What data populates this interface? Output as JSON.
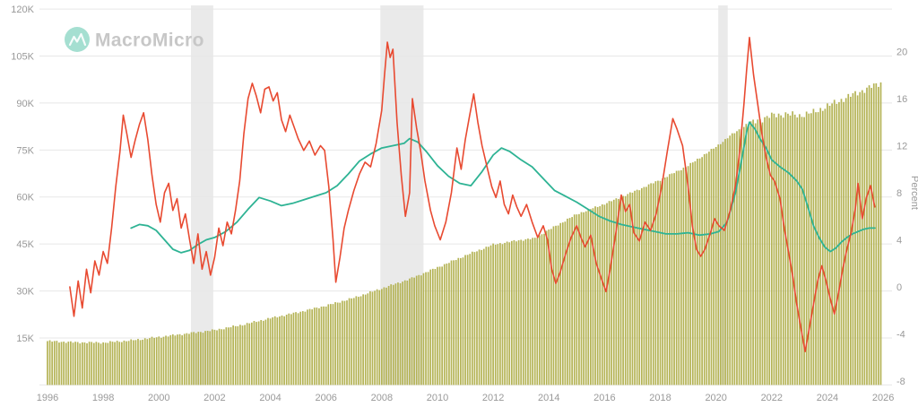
{
  "brand": {
    "logo_text": "MacroMicro"
  },
  "chart_data": {
    "type": "mixed",
    "title": "",
    "x_axis": {
      "ticks": [
        1996,
        1998,
        2000,
        2002,
        2004,
        2006,
        2008,
        2010,
        2012,
        2014,
        2016,
        2018,
        2020,
        2022,
        2024,
        2026
      ],
      "domain": [
        1995.8,
        2026.3
      ]
    },
    "left_axis": {
      "tick_values": [
        15,
        30,
        45,
        60,
        75,
        90,
        105,
        120
      ],
      "tick_labels": [
        "15K",
        "30K",
        "45K",
        "60K",
        "75K",
        "90K",
        "105K",
        "120K"
      ],
      "unit": "K",
      "domain": [
        0,
        122.8
      ]
    },
    "right_axis": {
      "label": "Percent",
      "tick_values": [
        -8,
        -4,
        0,
        4,
        8,
        12,
        16,
        20
      ],
      "domain": [
        -8.4,
        23.6
      ]
    },
    "recession_bands": [
      [
        2001.15,
        2001.95
      ],
      [
        2007.95,
        2009.5
      ],
      [
        2020.08,
        2020.42
      ]
    ],
    "colors": {
      "bar": "#b4b355",
      "red_line": "#e84a31",
      "green_line": "#2eb394",
      "grid": "#e7e7e7",
      "band": "#e6e6e6",
      "axis_text": "#999999",
      "background": "#ffffff",
      "logo_icon": "#4cc0a4"
    },
    "bar_series": {
      "name": "level-bars-monthly",
      "axis": "left",
      "frequency": "monthly",
      "range": [
        1996.0,
        2025.92
      ],
      "anchors_x": [
        1996.0,
        1996.5,
        1997.0,
        1998.0,
        1999.0,
        2000.0,
        2001.0,
        2002.0,
        2003.0,
        2004.0,
        2005.0,
        2006.0,
        2007.0,
        2008.0,
        2009.0,
        2010.0,
        2011.0,
        2012.0,
        2013.0,
        2013.5,
        2014.0,
        2015.0,
        2016.0,
        2017.0,
        2018.0,
        2019.0,
        2020.0,
        2020.5,
        2021.0,
        2021.5,
        2022.0,
        2022.5,
        2023.0,
        2023.5,
        2024.0,
        2024.5,
        2025.0,
        2025.92
      ],
      "anchors_v": [
        14.0,
        13.8,
        13.6,
        13.5,
        14.2,
        15.3,
        16.4,
        17.5,
        19.2,
        21.3,
        23.2,
        25.3,
        27.8,
        30.8,
        33.8,
        37.5,
        41.3,
        44.8,
        46.3,
        46.8,
        49.5,
        54.5,
        57.8,
        61.5,
        65.5,
        70.0,
        76.0,
        79.5,
        82.5,
        84.5,
        86.0,
        86.5,
        86.0,
        87.0,
        89.0,
        91.0,
        93.0,
        96.5
      ],
      "jitter": {
        "base": 0.25,
        "late": 0.8,
        "late_from": 2021
      }
    },
    "red_series": {
      "name": "yoy-growth-volatile",
      "axis": "right",
      "points": [
        [
          1996.8,
          0.0
        ],
        [
          1996.95,
          -2.5
        ],
        [
          1997.1,
          0.5
        ],
        [
          1997.25,
          -1.8
        ],
        [
          1997.4,
          1.5
        ],
        [
          1997.55,
          -0.5
        ],
        [
          1997.7,
          2.2
        ],
        [
          1997.85,
          1.0
        ],
        [
          1998.0,
          3.0
        ],
        [
          1998.15,
          2.0
        ],
        [
          1998.3,
          5.0
        ],
        [
          1998.45,
          8.5
        ],
        [
          1998.6,
          11.5
        ],
        [
          1998.72,
          14.6
        ],
        [
          1998.85,
          13.0
        ],
        [
          1999.0,
          11.0
        ],
        [
          1999.15,
          12.5
        ],
        [
          1999.3,
          13.8
        ],
        [
          1999.45,
          14.8
        ],
        [
          1999.6,
          12.5
        ],
        [
          1999.75,
          9.5
        ],
        [
          1999.9,
          7.0
        ],
        [
          2000.05,
          5.5
        ],
        [
          2000.2,
          8.0
        ],
        [
          2000.35,
          8.8
        ],
        [
          2000.5,
          6.5
        ],
        [
          2000.65,
          7.5
        ],
        [
          2000.8,
          5.0
        ],
        [
          2000.95,
          6.2
        ],
        [
          2001.1,
          4.0
        ],
        [
          2001.25,
          2.0
        ],
        [
          2001.4,
          4.5
        ],
        [
          2001.55,
          1.5
        ],
        [
          2001.7,
          3.0
        ],
        [
          2001.85,
          1.0
        ],
        [
          2002.0,
          2.5
        ],
        [
          2002.15,
          5.0
        ],
        [
          2002.3,
          3.5
        ],
        [
          2002.45,
          5.5
        ],
        [
          2002.6,
          4.5
        ],
        [
          2002.75,
          6.5
        ],
        [
          2002.9,
          9.0
        ],
        [
          2003.05,
          13.0
        ],
        [
          2003.2,
          16.0
        ],
        [
          2003.35,
          17.3
        ],
        [
          2003.5,
          16.2
        ],
        [
          2003.65,
          14.8
        ],
        [
          2003.8,
          16.8
        ],
        [
          2003.95,
          17.0
        ],
        [
          2004.1,
          15.8
        ],
        [
          2004.25,
          16.5
        ],
        [
          2004.4,
          14.2
        ],
        [
          2004.55,
          13.2
        ],
        [
          2004.7,
          14.6
        ],
        [
          2004.85,
          13.6
        ],
        [
          2005.0,
          12.6
        ],
        [
          2005.2,
          11.6
        ],
        [
          2005.4,
          12.4
        ],
        [
          2005.6,
          11.2
        ],
        [
          2005.8,
          12.0
        ],
        [
          2005.95,
          11.6
        ],
        [
          2006.1,
          8.5
        ],
        [
          2006.25,
          4.0
        ],
        [
          2006.35,
          0.4
        ],
        [
          2006.5,
          2.5
        ],
        [
          2006.65,
          5.0
        ],
        [
          2006.8,
          6.5
        ],
        [
          2007.0,
          8.2
        ],
        [
          2007.2,
          9.6
        ],
        [
          2007.4,
          10.6
        ],
        [
          2007.6,
          10.2
        ],
        [
          2007.8,
          12.2
        ],
        [
          2008.0,
          15.0
        ],
        [
          2008.1,
          18.0
        ],
        [
          2008.2,
          20.8
        ],
        [
          2008.3,
          19.5
        ],
        [
          2008.4,
          20.2
        ],
        [
          2008.55,
          14.0
        ],
        [
          2008.7,
          9.5
        ],
        [
          2008.85,
          6.0
        ],
        [
          2009.0,
          8.0
        ],
        [
          2009.1,
          16.0
        ],
        [
          2009.25,
          13.5
        ],
        [
          2009.4,
          11.5
        ],
        [
          2009.55,
          9.0
        ],
        [
          2009.75,
          6.5
        ],
        [
          2009.9,
          5.2
        ],
        [
          2010.1,
          4.0
        ],
        [
          2010.3,
          5.5
        ],
        [
          2010.5,
          8.0
        ],
        [
          2010.7,
          11.8
        ],
        [
          2010.85,
          10.0
        ],
        [
          2011.0,
          12.5
        ],
        [
          2011.15,
          14.5
        ],
        [
          2011.3,
          16.4
        ],
        [
          2011.45,
          14.0
        ],
        [
          2011.6,
          12.0
        ],
        [
          2011.8,
          10.0
        ],
        [
          2011.95,
          8.5
        ],
        [
          2012.1,
          7.6
        ],
        [
          2012.25,
          9.0
        ],
        [
          2012.4,
          7.0
        ],
        [
          2012.55,
          6.2
        ],
        [
          2012.7,
          7.8
        ],
        [
          2012.85,
          6.8
        ],
        [
          2013.0,
          6.0
        ],
        [
          2013.2,
          7.0
        ],
        [
          2013.4,
          5.5
        ],
        [
          2013.6,
          4.2
        ],
        [
          2013.8,
          5.2
        ],
        [
          2013.95,
          4.0
        ],
        [
          2014.1,
          1.5
        ],
        [
          2014.25,
          0.3
        ],
        [
          2014.4,
          1.2
        ],
        [
          2014.6,
          2.8
        ],
        [
          2014.8,
          4.2
        ],
        [
          2015.0,
          5.2
        ],
        [
          2015.15,
          4.2
        ],
        [
          2015.3,
          3.4
        ],
        [
          2015.5,
          4.4
        ],
        [
          2015.7,
          2.0
        ],
        [
          2015.9,
          0.6
        ],
        [
          2016.05,
          -0.4
        ],
        [
          2016.2,
          1.5
        ],
        [
          2016.4,
          4.5
        ],
        [
          2016.6,
          7.8
        ],
        [
          2016.75,
          6.4
        ],
        [
          2016.9,
          7.0
        ],
        [
          2017.05,
          4.6
        ],
        [
          2017.25,
          3.9
        ],
        [
          2017.45,
          5.5
        ],
        [
          2017.65,
          4.8
        ],
        [
          2017.85,
          6.2
        ],
        [
          2018.05,
          8.5
        ],
        [
          2018.25,
          11.5
        ],
        [
          2018.45,
          14.3
        ],
        [
          2018.6,
          13.4
        ],
        [
          2018.8,
          12.0
        ],
        [
          2019.0,
          8.5
        ],
        [
          2019.15,
          5.2
        ],
        [
          2019.3,
          3.2
        ],
        [
          2019.45,
          2.6
        ],
        [
          2019.6,
          3.2
        ],
        [
          2019.8,
          4.6
        ],
        [
          2019.95,
          5.8
        ],
        [
          2020.1,
          5.2
        ],
        [
          2020.3,
          4.8
        ],
        [
          2020.5,
          6.4
        ],
        [
          2020.7,
          8.6
        ],
        [
          2020.85,
          11.5
        ],
        [
          2021.0,
          15.5
        ],
        [
          2021.1,
          18.5
        ],
        [
          2021.2,
          21.2
        ],
        [
          2021.35,
          18.0
        ],
        [
          2021.5,
          15.5
        ],
        [
          2021.65,
          13.0
        ],
        [
          2021.8,
          11.0
        ],
        [
          2021.95,
          9.5
        ],
        [
          2022.1,
          9.0
        ],
        [
          2022.3,
          7.5
        ],
        [
          2022.45,
          5.0
        ],
        [
          2022.6,
          3.0
        ],
        [
          2022.75,
          1.0
        ],
        [
          2022.9,
          -1.5
        ],
        [
          2023.05,
          -3.5
        ],
        [
          2023.2,
          -5.5
        ],
        [
          2023.35,
          -3.5
        ],
        [
          2023.5,
          -1.5
        ],
        [
          2023.65,
          0.5
        ],
        [
          2023.8,
          1.8
        ],
        [
          2023.95,
          0.5
        ],
        [
          2024.1,
          -1.0
        ],
        [
          2024.25,
          -2.3
        ],
        [
          2024.4,
          -0.5
        ],
        [
          2024.55,
          1.5
        ],
        [
          2024.7,
          3.2
        ],
        [
          2024.85,
          4.6
        ],
        [
          2025.0,
          6.6
        ],
        [
          2025.1,
          8.8
        ],
        [
          2025.25,
          5.8
        ],
        [
          2025.4,
          7.6
        ],
        [
          2025.55,
          8.6
        ],
        [
          2025.7,
          6.8
        ]
      ]
    },
    "green_series": {
      "name": "yoy-growth-smooth",
      "axis": "right",
      "points": [
        [
          1999.0,
          5.0
        ],
        [
          1999.3,
          5.3
        ],
        [
          1999.6,
          5.2
        ],
        [
          1999.9,
          4.8
        ],
        [
          2000.2,
          4.0
        ],
        [
          2000.5,
          3.2
        ],
        [
          2000.8,
          2.9
        ],
        [
          2001.1,
          3.1
        ],
        [
          2001.4,
          3.6
        ],
        [
          2001.7,
          4.0
        ],
        [
          2002.0,
          4.2
        ],
        [
          2002.4,
          4.7
        ],
        [
          2002.8,
          5.5
        ],
        [
          2003.2,
          6.6
        ],
        [
          2003.6,
          7.6
        ],
        [
          2004.0,
          7.3
        ],
        [
          2004.4,
          6.9
        ],
        [
          2004.8,
          7.1
        ],
        [
          2005.2,
          7.4
        ],
        [
          2005.6,
          7.7
        ],
        [
          2006.0,
          8.0
        ],
        [
          2006.4,
          8.6
        ],
        [
          2006.8,
          9.6
        ],
        [
          2007.2,
          10.7
        ],
        [
          2007.6,
          11.3
        ],
        [
          2008.0,
          11.8
        ],
        [
          2008.4,
          12.0
        ],
        [
          2008.8,
          12.2
        ],
        [
          2009.0,
          12.6
        ],
        [
          2009.3,
          12.3
        ],
        [
          2009.6,
          11.5
        ],
        [
          2010.0,
          10.3
        ],
        [
          2010.4,
          9.4
        ],
        [
          2010.8,
          8.8
        ],
        [
          2011.2,
          8.6
        ],
        [
          2011.6,
          9.8
        ],
        [
          2012.0,
          11.2
        ],
        [
          2012.3,
          11.8
        ],
        [
          2012.6,
          11.5
        ],
        [
          2013.0,
          10.8
        ],
        [
          2013.4,
          10.2
        ],
        [
          2013.8,
          9.2
        ],
        [
          2014.2,
          8.2
        ],
        [
          2014.6,
          7.7
        ],
        [
          2015.0,
          7.2
        ],
        [
          2015.4,
          6.6
        ],
        [
          2015.8,
          6.0
        ],
        [
          2016.2,
          5.6
        ],
        [
          2016.6,
          5.3
        ],
        [
          2017.0,
          5.1
        ],
        [
          2017.4,
          4.9
        ],
        [
          2017.8,
          4.7
        ],
        [
          2018.2,
          4.5
        ],
        [
          2018.6,
          4.5
        ],
        [
          2019.0,
          4.6
        ],
        [
          2019.4,
          4.4
        ],
        [
          2019.8,
          4.5
        ],
        [
          2020.1,
          4.7
        ],
        [
          2020.4,
          5.5
        ],
        [
          2020.7,
          8.0
        ],
        [
          2020.9,
          10.5
        ],
        [
          2021.1,
          13.2
        ],
        [
          2021.2,
          14.0
        ],
        [
          2021.4,
          13.4
        ],
        [
          2021.6,
          12.5
        ],
        [
          2021.8,
          11.8
        ],
        [
          2022.0,
          10.8
        ],
        [
          2022.3,
          10.2
        ],
        [
          2022.6,
          9.7
        ],
        [
          2022.9,
          9.0
        ],
        [
          2023.1,
          8.3
        ],
        [
          2023.3,
          6.8
        ],
        [
          2023.5,
          5.2
        ],
        [
          2023.7,
          4.2
        ],
        [
          2023.9,
          3.4
        ],
        [
          2024.1,
          3.0
        ],
        [
          2024.3,
          3.3
        ],
        [
          2024.5,
          3.8
        ],
        [
          2024.7,
          4.2
        ],
        [
          2024.9,
          4.5
        ],
        [
          2025.1,
          4.7
        ],
        [
          2025.3,
          4.9
        ],
        [
          2025.5,
          5.0
        ],
        [
          2025.7,
          5.0
        ]
      ]
    }
  }
}
